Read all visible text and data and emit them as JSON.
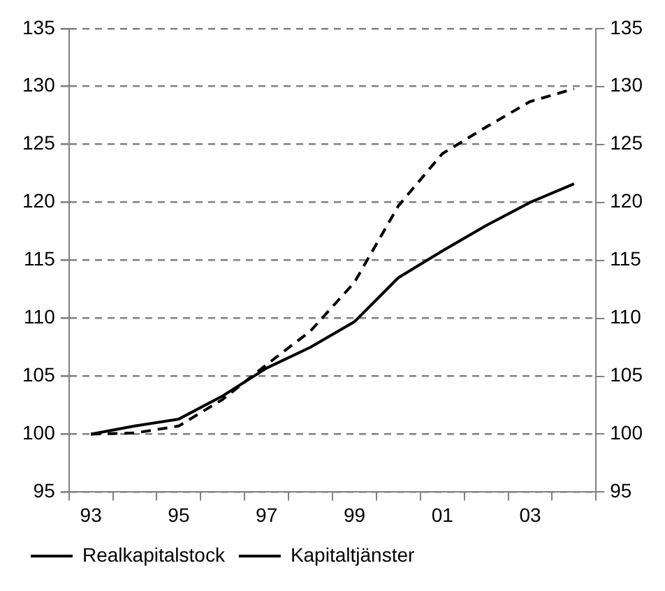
{
  "chart_data": {
    "type": "line",
    "categories": [
      "93",
      null,
      "95",
      null,
      "97",
      null,
      "99",
      null,
      "01",
      null,
      "03",
      null
    ],
    "series": [
      {
        "name": "Realkapitalstock",
        "color": "#000000",
        "line_style": "solid",
        "values": [
          100,
          100.7,
          101.3,
          103.3,
          105.7,
          107.5,
          109.7,
          113.5,
          115.8,
          118.0,
          120.0,
          121.6
        ]
      },
      {
        "name": "Kapitaltjänster",
        "color": "#000000",
        "line_style": "dashed",
        "values": [
          100,
          100.1,
          100.7,
          103.0,
          106.0,
          108.9,
          113.1,
          119.7,
          124.2,
          126.5,
          128.7,
          129.8
        ]
      }
    ],
    "ylim": [
      95,
      135
    ],
    "yticks": [
      95,
      100,
      105,
      110,
      115,
      120,
      125,
      130,
      135
    ],
    "y2lim": [
      95,
      135
    ],
    "y2ticks": [
      95,
      100,
      105,
      110,
      115,
      120,
      125,
      130,
      135
    ],
    "grid": "y",
    "legend": "bottom left",
    "marker": "none"
  }
}
